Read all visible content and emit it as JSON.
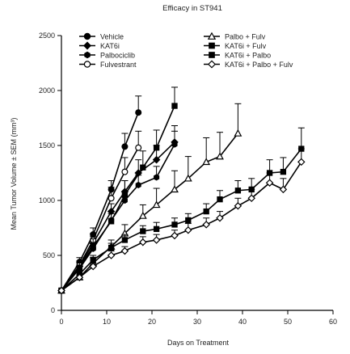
{
  "chart_data": {
    "type": "line",
    "title": "Efficacy in ST941",
    "xlabel": "Days on Treatment",
    "ylabel": "Mean Tumor Volume ± SEM (mm³)",
    "xlim": [
      0,
      60
    ],
    "ylim": [
      0,
      2500
    ],
    "xticks": [
      "0",
      "10",
      "20",
      "30",
      "40",
      "50",
      "60"
    ],
    "yticks": [
      "0",
      "500",
      "1000",
      "1500",
      "2000",
      "2500"
    ],
    "grid": false,
    "legend_position": "top",
    "colors": {
      "line": "#000000",
      "open_fill": "#ffffff"
    },
    "series": [
      {
        "name": "Vehicle",
        "marker": "circle",
        "filled": true,
        "x": [
          0,
          4,
          7,
          11,
          14,
          17
        ],
        "y": [
          180,
          440,
          690,
          1100,
          1490,
          1800
        ],
        "err": [
          0,
          40,
          60,
          80,
          120,
          150
        ]
      },
      {
        "name": "KAT6i",
        "marker": "diamond",
        "filled": true,
        "x": [
          0,
          4,
          7,
          11,
          14,
          17,
          21,
          25
        ],
        "y": [
          180,
          400,
          610,
          900,
          1080,
          1250,
          1370,
          1530
        ],
        "err": [
          0,
          40,
          60,
          70,
          100,
          120,
          130,
          150
        ]
      },
      {
        "name": "Palbociclib",
        "marker": "hexagon",
        "filled": true,
        "x": [
          0,
          4,
          7,
          11,
          14,
          17,
          21,
          25
        ],
        "y": [
          180,
          380,
          560,
          820,
          1000,
          1140,
          1210,
          1510
        ],
        "err": [
          0,
          30,
          50,
          60,
          80,
          90,
          100,
          120
        ]
      },
      {
        "name": "Fulvestrant",
        "marker": "circle",
        "filled": false,
        "x": [
          0,
          4,
          7,
          11,
          14,
          17
        ],
        "y": [
          180,
          410,
          640,
          1020,
          1260,
          1480
        ],
        "err": [
          0,
          40,
          60,
          100,
          130,
          150
        ]
      },
      {
        "name": "Palbo + Fulv",
        "marker": "triangle",
        "filled": false,
        "x": [
          0,
          4,
          7,
          11,
          14,
          18,
          21,
          25,
          28,
          32,
          35,
          39
        ],
        "y": [
          180,
          300,
          430,
          580,
          700,
          860,
          960,
          1100,
          1200,
          1350,
          1400,
          1610
        ],
        "err": [
          0,
          30,
          50,
          60,
          80,
          100,
          150,
          170,
          200,
          220,
          220,
          270
        ]
      },
      {
        "name": "KAT6i + Fulv",
        "marker": "square",
        "filled": true,
        "x": [
          0,
          4,
          7,
          11,
          14,
          18,
          21,
          25
        ],
        "y": [
          180,
          390,
          580,
          810,
          1050,
          1300,
          1480,
          1860
        ],
        "err": [
          0,
          40,
          70,
          90,
          130,
          150,
          160,
          170
        ]
      },
      {
        "name": "KAT6i + Palbo",
        "marker": "square",
        "filled": true,
        "x": [
          0,
          4,
          7,
          11,
          14,
          18,
          21,
          25,
          28,
          32,
          35,
          39,
          42,
          46,
          49,
          53
        ],
        "y": [
          180,
          330,
          460,
          570,
          640,
          720,
          740,
          780,
          820,
          900,
          1010,
          1090,
          1100,
          1250,
          1260,
          1470
        ],
        "err": [
          0,
          30,
          40,
          40,
          50,
          50,
          60,
          60,
          60,
          70,
          80,
          90,
          100,
          120,
          130,
          190
        ]
      },
      {
        "name": "KAT6i + Palbo + Fulv",
        "marker": "diamond",
        "filled": false,
        "x": [
          0,
          4,
          7,
          11,
          14,
          18,
          21,
          25,
          28,
          32,
          35,
          39,
          42,
          46,
          49,
          53
        ],
        "y": [
          180,
          300,
          400,
          500,
          540,
          620,
          640,
          680,
          730,
          780,
          840,
          950,
          1020,
          1160,
          1100,
          1350
        ],
        "err": [
          0,
          20,
          30,
          40,
          40,
          50,
          50,
          50,
          60,
          60,
          60,
          70,
          80,
          90,
          100,
          120
        ]
      }
    ]
  }
}
